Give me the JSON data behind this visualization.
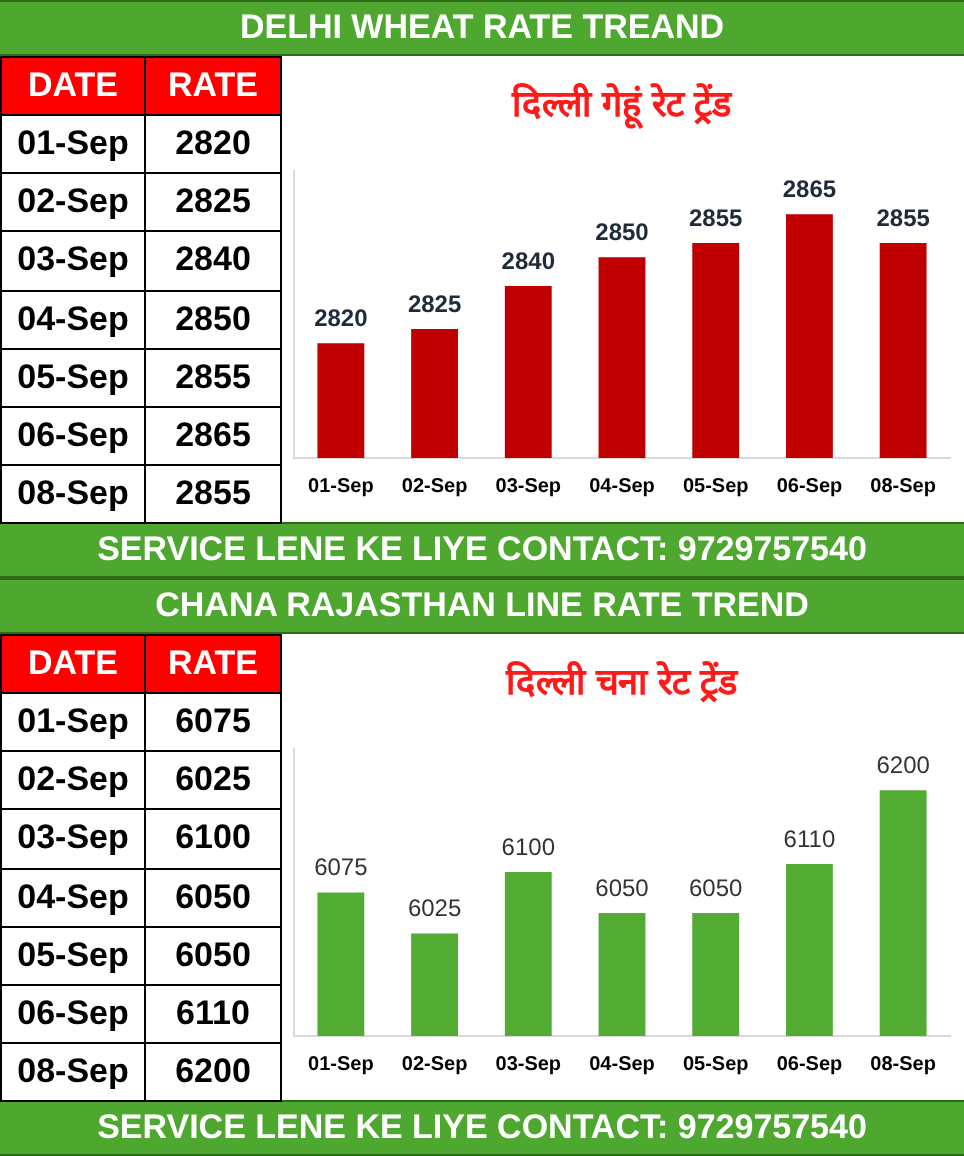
{
  "chart_data": [
    {
      "type": "bar",
      "title": "DELHI WHEAT RATE TREAND",
      "subtitle": "दिल्ली गेहूं रेट ट्रेंड",
      "categories": [
        "01-Sep",
        "02-Sep",
        "03-Sep",
        "04-Sep",
        "05-Sep",
        "06-Sep",
        "08-Sep"
      ],
      "values": [
        2820,
        2825,
        2840,
        2850,
        2855,
        2865,
        2855
      ],
      "color": "#c00000",
      "ylim": [
        2780,
        2880
      ],
      "tick_labels": "x",
      "data_labels": true,
      "annotations": [
        "DATE",
        "RATE",
        "2820",
        "2825",
        "2840",
        "2850",
        "2855",
        "2865",
        "2855",
        "SERVICE LENE KE LIYE CONTACT: 9729757540"
      ]
    },
    {
      "type": "bar",
      "title": "CHANA RAJASTHAN LINE RATE TREND",
      "subtitle": "दिल्ली चना रेट ट्रेंड",
      "categories": [
        "01-Sep",
        "02-Sep",
        "03-Sep",
        "04-Sep",
        "05-Sep",
        "06-Sep",
        "08-Sep"
      ],
      "values": [
        6075,
        6025,
        6100,
        6050,
        6050,
        6110,
        6200
      ],
      "color": "#52ab33",
      "ylim": [
        5900,
        6250
      ],
      "tick_labels": "x",
      "data_labels": true,
      "annotations": [
        "DATE",
        "RATE",
        "6075",
        "6025",
        "6100",
        "6050",
        "6050",
        "6110",
        "6200",
        "SERVICE LENE KE LIYE CONTACT: 9729757540"
      ]
    }
  ]
}
